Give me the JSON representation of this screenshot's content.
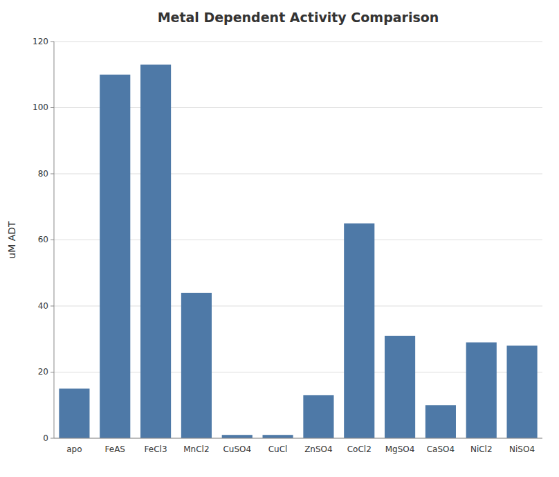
{
  "chart_data": {
    "type": "bar",
    "title": "Metal Dependent Activity Comparison",
    "ylabel": "uM ADT",
    "categories": [
      "apo",
      "FeAS",
      "FeCl3",
      "MnCl2",
      "CuSO4",
      "CuCl",
      "ZnSO4",
      "CoCl2",
      "MgSO4",
      "CaSO4",
      "NiCl2",
      "NiSO4"
    ],
    "values": [
      15,
      110,
      113,
      44,
      1,
      1,
      13,
      65,
      31,
      10,
      29,
      28
    ],
    "ylim": [
      0,
      120
    ],
    "yticks": [
      0,
      20,
      40,
      60,
      80,
      100,
      120
    ],
    "grid": true
  }
}
